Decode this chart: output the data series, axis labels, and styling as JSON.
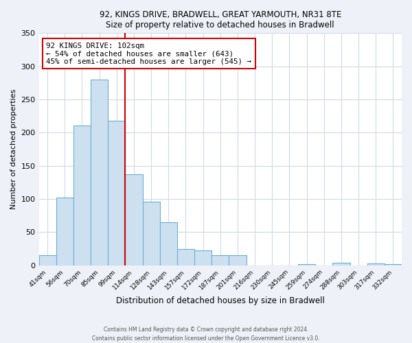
{
  "title1": "92, KINGS DRIVE, BRADWELL, GREAT YARMOUTH, NR31 8TE",
  "title2": "Size of property relative to detached houses in Bradwell",
  "xlabel": "Distribution of detached houses by size in Bradwell",
  "ylabel": "Number of detached properties",
  "categories": [
    "41sqm",
    "56sqm",
    "70sqm",
    "85sqm",
    "99sqm",
    "114sqm",
    "128sqm",
    "143sqm",
    "157sqm",
    "172sqm",
    "187sqm",
    "201sqm",
    "216sqm",
    "230sqm",
    "245sqm",
    "259sqm",
    "274sqm",
    "288sqm",
    "303sqm",
    "317sqm",
    "332sqm"
  ],
  "values": [
    15,
    102,
    211,
    280,
    218,
    137,
    96,
    65,
    25,
    22,
    15,
    15,
    0,
    0,
    0,
    2,
    0,
    4,
    0,
    3,
    2
  ],
  "bar_color": "#cde0f0",
  "bar_edge_color": "#6aaed6",
  "vline_x": 4.5,
  "vline_color": "#cc0000",
  "annotation_title": "92 KINGS DRIVE: 102sqm",
  "annotation_line1": "← 54% of detached houses are smaller (643)",
  "annotation_line2": "45% of semi-detached houses are larger (545) →",
  "annotation_box_color": "#ffffff",
  "annotation_box_edge_color": "#cc0000",
  "ylim": [
    0,
    350
  ],
  "yticks": [
    0,
    50,
    100,
    150,
    200,
    250,
    300,
    350
  ],
  "footer1": "Contains HM Land Registry data © Crown copyright and database right 2024.",
  "footer2": "Contains public sector information licensed under the Open Government Licence v3.0.",
  "bg_color": "#eef2f8",
  "plot_bg_color": "#ffffff",
  "grid_color": "#d0d8e8"
}
